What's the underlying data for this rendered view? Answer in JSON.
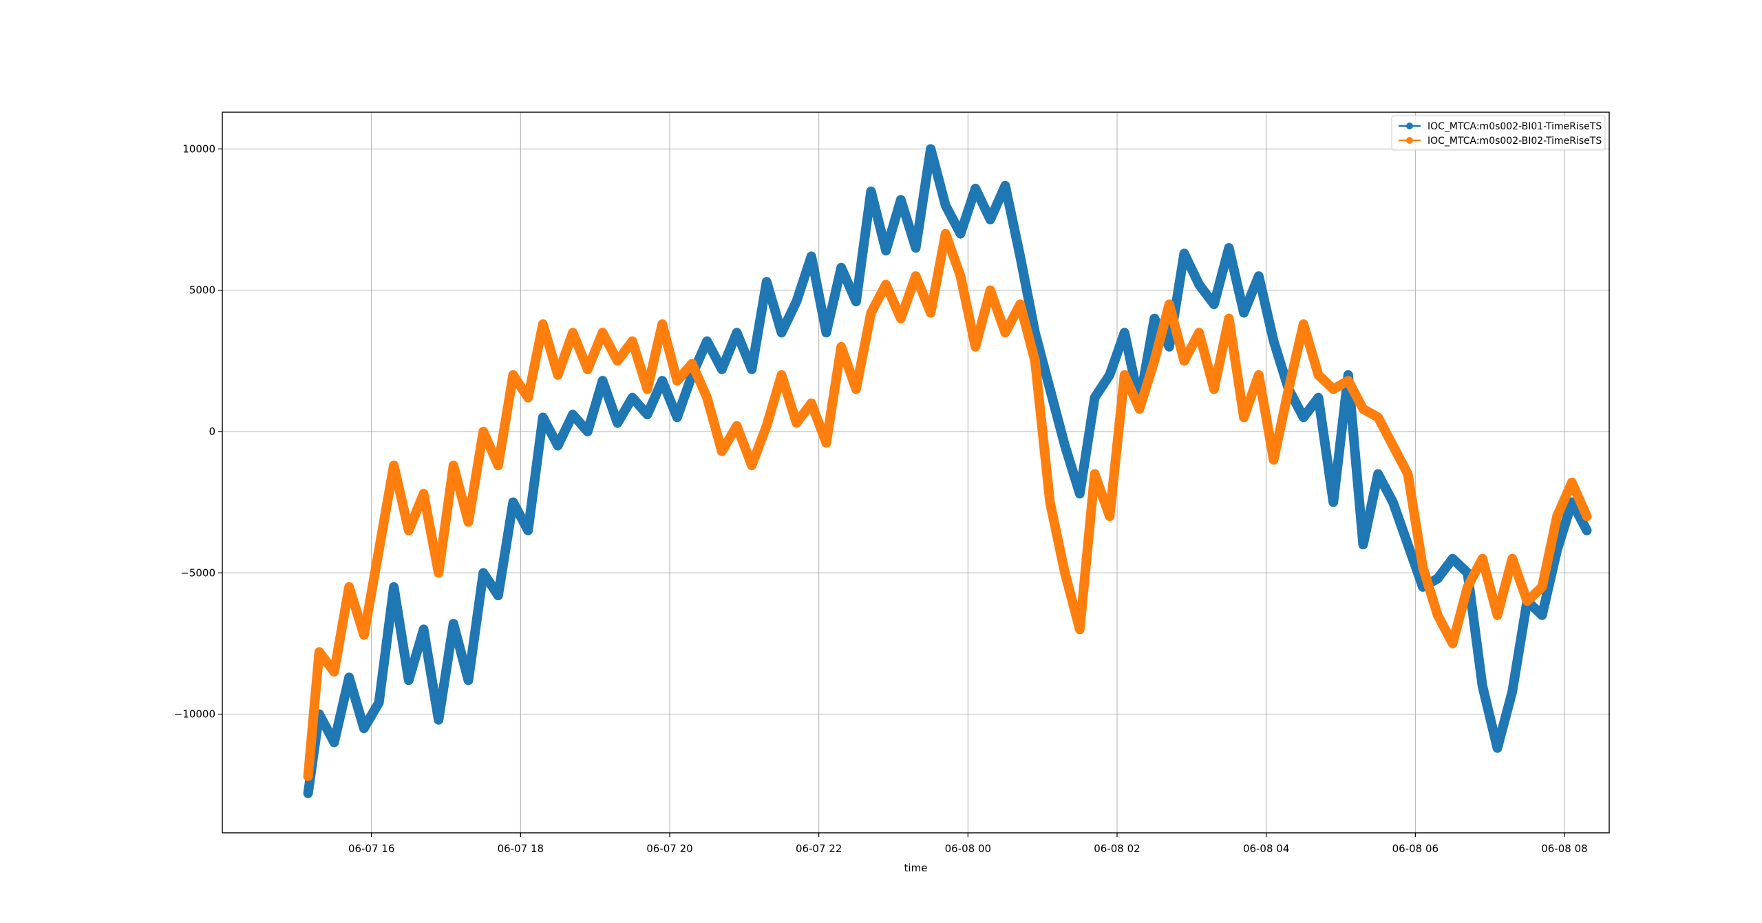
{
  "chart_data": {
    "type": "line",
    "title": "",
    "xlabel": "time",
    "ylabel": "",
    "grid": true,
    "legend_position": "top-right",
    "x_ticks": [
      "06-07 16",
      "06-07 18",
      "06-07 20",
      "06-07 22",
      "06-08 00",
      "06-08 02",
      "06-08 04",
      "06-08 06",
      "06-08 08"
    ],
    "x_tick_hours": [
      16,
      18,
      20,
      22,
      24,
      26,
      28,
      30,
      32
    ],
    "xlim_hours": [
      14.0,
      32.6
    ],
    "y_ticks": [
      10000,
      5000,
      0,
      -5000,
      -10000
    ],
    "y_tick_labels": [
      "10000",
      "5000",
      "0",
      "−5000",
      "−10000"
    ],
    "ylim": [
      -14200,
      11300
    ],
    "x_hours": [
      15.15,
      15.3,
      15.5,
      15.7,
      15.9,
      16.1,
      16.3,
      16.5,
      16.7,
      16.9,
      17.1,
      17.3,
      17.5,
      17.7,
      17.9,
      18.1,
      18.3,
      18.5,
      18.7,
      18.9,
      19.1,
      19.3,
      19.5,
      19.7,
      19.9,
      20.1,
      20.3,
      20.5,
      20.7,
      20.9,
      21.1,
      21.3,
      21.5,
      21.7,
      21.9,
      22.1,
      22.3,
      22.5,
      22.7,
      22.9,
      23.1,
      23.3,
      23.5,
      23.7,
      23.9,
      24.1,
      24.3,
      24.5,
      24.7,
      24.9,
      25.1,
      25.3,
      25.5,
      25.7,
      25.9,
      26.1,
      26.3,
      26.5,
      26.7,
      26.9,
      27.1,
      27.3,
      27.5,
      27.7,
      27.9,
      28.1,
      28.3,
      28.5,
      28.7,
      28.9,
      29.1,
      29.3,
      29.5,
      29.7,
      29.9,
      30.1,
      30.3,
      30.5,
      30.7,
      30.9,
      31.1,
      31.3,
      31.5,
      31.7,
      31.9,
      32.1,
      32.3
    ],
    "series": [
      {
        "name": "IOC_MTCA:m0s002-BI01-TimeRiseTS",
        "color": "#1f77b4",
        "values": [
          -12800,
          -10000,
          -11000,
          -8700,
          -10500,
          -9600,
          -5500,
          -8800,
          -7000,
          -10200,
          -6800,
          -8800,
          -5000,
          -5800,
          -2500,
          -3500,
          500,
          -500,
          600,
          0,
          1800,
          300,
          1200,
          600,
          1800,
          500,
          2000,
          3200,
          2200,
          3500,
          2200,
          5300,
          3500,
          4600,
          6200,
          3500,
          5800,
          4600,
          8500,
          6400,
          8200,
          6500,
          10000,
          8000,
          7000,
          8600,
          7500,
          8700,
          6200,
          3500,
          1500,
          -500,
          -2200,
          1200,
          2000,
          3500,
          1000,
          4000,
          3000,
          6300,
          5200,
          4500,
          6500,
          4200,
          5500,
          3200,
          1500,
          500,
          1200,
          -2500,
          2000,
          -4000,
          -1500,
          -2500,
          -4000,
          -5500,
          -5200,
          -4500,
          -5000,
          -9000,
          -11200,
          -9200,
          -6000,
          -6500,
          -4200,
          -2500,
          -3500
        ]
      },
      {
        "name": "IOC_MTCA:m0s002-BI02-TimeRiseTS",
        "color": "#ff7f0e",
        "values": [
          -12200,
          -7800,
          -8500,
          -5500,
          -7200,
          -4200,
          -1200,
          -3500,
          -2200,
          -5000,
          -1200,
          -3200,
          0,
          -1200,
          2000,
          1200,
          3800,
          2000,
          3500,
          2200,
          3500,
          2500,
          3200,
          1500,
          3800,
          1800,
          2400,
          1200,
          -700,
          200,
          -1200,
          200,
          2000,
          300,
          1000,
          -400,
          3000,
          1500,
          4200,
          5200,
          4000,
          5500,
          4200,
          7000,
          5500,
          3000,
          5000,
          3500,
          4500,
          2500,
          -2500,
          -5000,
          -7000,
          -1500,
          -3000,
          2000,
          800,
          2500,
          4500,
          2500,
          3500,
          1500,
          4000,
          500,
          2000,
          -1000,
          1500,
          3800,
          2000,
          1500,
          1800,
          800,
          500,
          -500,
          -1500,
          -4800,
          -6500,
          -7500,
          -5500,
          -4500,
          -6500,
          -4500,
          -6000,
          -5500,
          -3000,
          -1800,
          -3000
        ]
      }
    ]
  }
}
